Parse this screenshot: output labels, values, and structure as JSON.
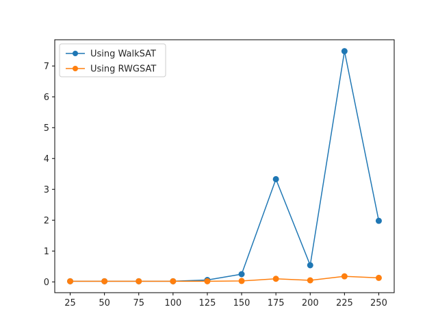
{
  "chart_data": {
    "type": "line",
    "title": "",
    "xlabel": "",
    "ylabel": "",
    "x": [
      25,
      50,
      75,
      100,
      125,
      150,
      175,
      200,
      225,
      250
    ],
    "xticks": [
      25,
      50,
      75,
      100,
      125,
      150,
      175,
      200,
      225,
      250
    ],
    "yticks": [
      0,
      1,
      2,
      3,
      4,
      5,
      6,
      7
    ],
    "xlim": [
      13.75,
      261.25
    ],
    "ylim": [
      -0.35,
      7.85
    ],
    "grid": false,
    "legend_position": "top-left",
    "series": [
      {
        "name": "Using WalkSAT",
        "color": "#1f77b4",
        "marker": "circle",
        "values": [
          0.02,
          0.02,
          0.02,
          0.02,
          0.06,
          0.25,
          3.33,
          0.54,
          7.48,
          1.98
        ]
      },
      {
        "name": "Using RWGSAT",
        "color": "#ff7f0e",
        "marker": "circle",
        "values": [
          0.02,
          0.02,
          0.02,
          0.02,
          0.02,
          0.03,
          0.1,
          0.05,
          0.18,
          0.13
        ]
      }
    ]
  }
}
